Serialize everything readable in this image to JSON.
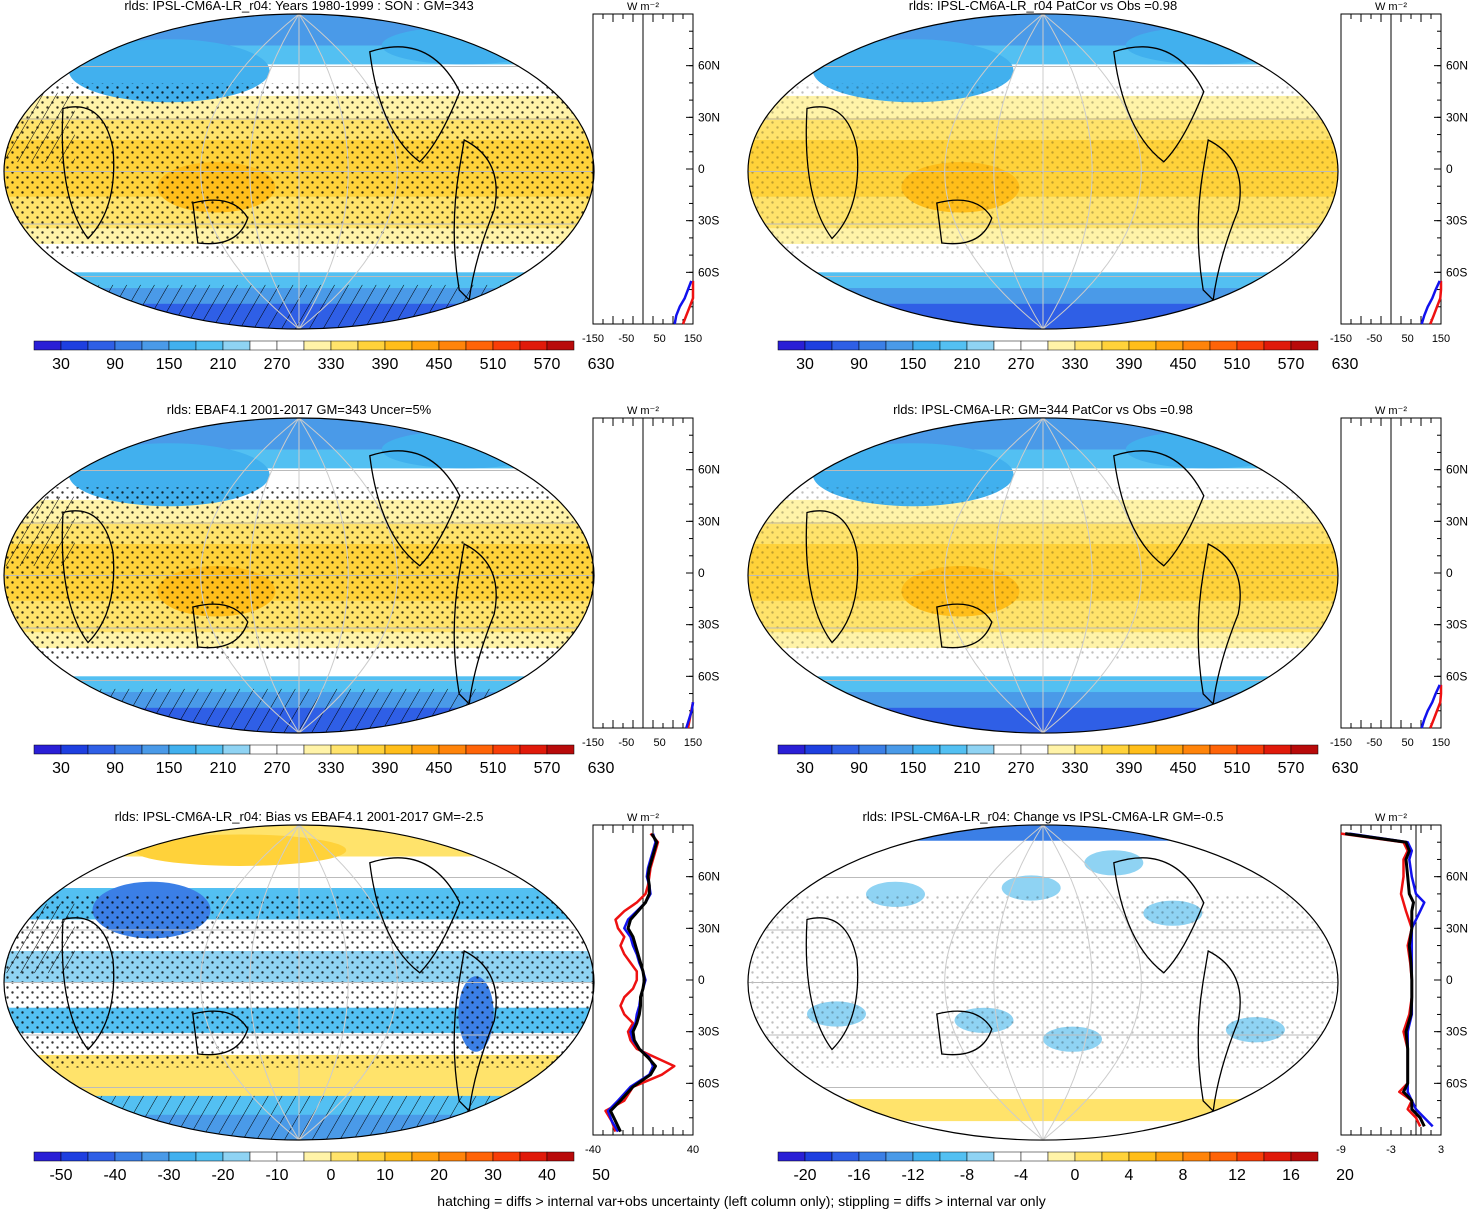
{
  "footer": "hatching = diffs > internal var+obs uncertainty (left column only); stippling = diffs > internal var only",
  "colors": {
    "sequential": [
      "#2a1fd6",
      "#1e3fe0",
      "#2f5fe6",
      "#3b7fe6",
      "#4a9ae8",
      "#41b0ee",
      "#53c0f2",
      "#8fd3f3",
      "#ffffff",
      "#ffffff",
      "#fff3a8",
      "#ffe36b",
      "#ffd23a",
      "#ffbe1a",
      "#ffa20e",
      "#ff840a",
      "#ff6408",
      "#f83e08",
      "#e01a0a",
      "#b80a0a"
    ],
    "diverging": [
      "#2a1fd6",
      "#1e3fe0",
      "#2f5fe6",
      "#3b7fe6",
      "#4a9ae8",
      "#41b0ee",
      "#53c0f2",
      "#8fd3f3",
      "#ffffff",
      "#ffffff",
      "#fff3a8",
      "#ffe36b",
      "#ffd23a",
      "#ffbe1a",
      "#ffa20e",
      "#ff840a",
      "#ff6408",
      "#f83e08",
      "#e01a0a",
      "#b80a0a"
    ],
    "line_red": "#ee1111",
    "line_blue": "#1111ee",
    "line_black": "#000000"
  },
  "chart_data": [
    {
      "type": "heatmap",
      "title": "rlds: IPSL-CM6A-LR_r04: Years 1980-1999 : SON : GM=343",
      "colorbar_labels": [
        "30",
        "90",
        "150",
        "210",
        "270",
        "330",
        "390",
        "450",
        "510",
        "570",
        "630"
      ],
      "profile": {
        "units_label": "W m⁻²",
        "xticks": [
          "-150",
          "-50",
          "50",
          "150"
        ],
        "xlim": [
          -150,
          150
        ],
        "lat_labels": [
          "60N",
          "30N",
          "0",
          "30S",
          "60S"
        ],
        "series": [
          {
            "name": "",
            "lat": [
              -90,
              -85,
              -80,
              -75,
              -70,
              -65
            ],
            "values": [
              120,
              130,
              140,
              150,
              150,
              150
            ]
          },
          {
            "name": "",
            "lat": [
              -90,
              -85,
              -80,
              -75,
              -70,
              -65
            ],
            "values": [
              95,
              100,
              110,
              125,
              135,
              145
            ]
          }
        ]
      }
    },
    {
      "type": "heatmap",
      "title": "rlds: IPSL-CM6A-LR_r04 PatCor vs Obs =0.98",
      "colorbar_labels": [
        "30",
        "90",
        "150",
        "210",
        "270",
        "330",
        "390",
        "450",
        "510",
        "570",
        "630"
      ],
      "profile": {
        "units_label": "W m⁻²",
        "xticks": [
          "-150",
          "-50",
          "50",
          "150"
        ],
        "xlim": [
          -150,
          150
        ],
        "lat_labels": [
          "60N",
          "30N",
          "0",
          "30S",
          "60S"
        ],
        "series": [
          {
            "name": "",
            "lat": [
              -90,
              -85,
              -80,
              -75,
              -70,
              -65
            ],
            "values": [
              118,
              128,
              138,
              148,
              150,
              150
            ]
          },
          {
            "name": "",
            "lat": [
              -90,
              -85,
              -80,
              -75,
              -70,
              -65
            ],
            "values": [
              92,
              100,
              110,
              124,
              134,
              146
            ]
          }
        ]
      }
    },
    {
      "type": "heatmap",
      "title": "rlds: EBAF4.1 2001-2017 GM=343 Uncer=5%",
      "colorbar_labels": [
        "30",
        "90",
        "150",
        "210",
        "270",
        "330",
        "390",
        "450",
        "510",
        "570",
        "630"
      ],
      "profile": {
        "units_label": "W m⁻²",
        "xticks": [
          "-150",
          "-50",
          "50",
          "150"
        ],
        "xlim": [
          -150,
          150
        ],
        "lat_labels": [
          "60N",
          "30N",
          "0",
          "30S",
          "60S"
        ],
        "series": [
          {
            "name": "",
            "lat": [
              -90,
              -85,
              -80,
              -75
            ],
            "values": [
              135,
              140,
              145,
              150
            ]
          },
          {
            "name": "",
            "lat": [
              -90,
              -85,
              -80,
              -75
            ],
            "values": [
              130,
              138,
              146,
              150
            ]
          }
        ]
      }
    },
    {
      "type": "heatmap",
      "title": "rlds: IPSL-CM6A-LR: GM=344 PatCor vs Obs =0.98",
      "colorbar_labels": [
        "30",
        "90",
        "150",
        "210",
        "270",
        "330",
        "390",
        "450",
        "510",
        "570",
        "630"
      ],
      "profile": {
        "units_label": "W m⁻²",
        "xticks": [
          "-150",
          "-50",
          "50",
          "150"
        ],
        "xlim": [
          -150,
          150
        ],
        "lat_labels": [
          "60N",
          "30N",
          "0",
          "30S",
          "60S"
        ],
        "series": [
          {
            "name": "",
            "lat": [
              -90,
              -85,
              -80,
              -75,
              -70,
              -65
            ],
            "values": [
              118,
              128,
              138,
              148,
              150,
              150
            ]
          },
          {
            "name": "",
            "lat": [
              -90,
              -85,
              -80,
              -75,
              -70,
              -65
            ],
            "values": [
              92,
              100,
              110,
              124,
              134,
              146
            ]
          }
        ]
      }
    },
    {
      "type": "heatmap",
      "title": "rlds: IPSL-CM6A-LR_r04: Bias vs EBAF4.1 2001-2017  GM=-2.5",
      "colorbar_labels": [
        "-50",
        "-40",
        "-30",
        "-20",
        "-10",
        "0",
        "10",
        "20",
        "30",
        "40",
        "50"
      ],
      "profile": {
        "units_label": "W m⁻²",
        "xticks": [
          "-40",
          "40"
        ],
        "xlim": [
          -40,
          40
        ],
        "lat_labels": [
          "60N",
          "30N",
          "0",
          "30S",
          "60S"
        ],
        "series": [
          {
            "name": "",
            "lat": [
              -88,
              -82,
              -76,
              -70,
              -62,
              -55,
              -50,
              -45,
              -40,
              -35,
              -30,
              -25,
              -20,
              -15,
              -10,
              -5,
              0,
              5,
              10,
              15,
              20,
              25,
              30,
              35,
              40,
              45,
              50,
              55,
              60,
              65,
              70,
              75,
              80,
              85
            ],
            "values": [
              -22,
              -25,
              -30,
              -15,
              -8,
              15,
              25,
              10,
              -5,
              -10,
              -12,
              -8,
              -15,
              -18,
              -15,
              -8,
              -5,
              -5,
              -10,
              -15,
              -18,
              -15,
              -20,
              -22,
              -15,
              -5,
              2,
              4,
              5,
              6,
              8,
              10,
              12,
              6
            ]
          },
          {
            "name": "",
            "lat": [
              -88,
              -82,
              -76,
              -70,
              -62,
              -55,
              -50,
              -45,
              -40,
              -35,
              -30,
              -25,
              -20,
              -15,
              -10,
              -5,
              0,
              5,
              10,
              15,
              20,
              25,
              30,
              35,
              40,
              45,
              50,
              55,
              60,
              65,
              70,
              75,
              80,
              85
            ],
            "values": [
              -20,
              -25,
              -28,
              -20,
              -10,
              5,
              8,
              5,
              -3,
              -8,
              -10,
              -6,
              -5,
              -3,
              -2,
              0,
              2,
              0,
              -3,
              -5,
              -8,
              -10,
              -15,
              -12,
              -5,
              2,
              6,
              5,
              3,
              4,
              6,
              8,
              10,
              8
            ]
          },
          {
            "name": "",
            "lat": [
              -88,
              -82,
              -76,
              -70,
              -62,
              -55,
              -50,
              -45,
              -40,
              -35,
              -30,
              -25,
              -20,
              -15,
              -10,
              -5,
              0,
              5,
              10,
              15,
              20,
              25,
              30,
              35,
              40,
              45,
              50,
              55,
              60,
              65,
              70,
              75,
              80,
              85
            ],
            "values": [
              -18,
              -22,
              -26,
              -18,
              -8,
              6,
              10,
              4,
              -3,
              -7,
              -8,
              -5,
              -3,
              -2,
              -2,
              0,
              1,
              0,
              -2,
              -4,
              -6,
              -8,
              -12,
              -10,
              -4,
              2,
              5,
              5,
              4,
              5,
              7,
              9,
              11,
              7
            ]
          }
        ]
      }
    },
    {
      "type": "heatmap",
      "title": "rlds: IPSL-CM6A-LR_r04: Change vs IPSL-CM6A-LR GM=-0.5",
      "colorbar_labels": [
        "-20",
        "-16",
        "-12",
        "-8",
        "-4",
        "0",
        "4",
        "8",
        "12",
        "16",
        "20"
      ],
      "profile": {
        "units_label": "W m⁻²",
        "xticks": [
          "-9",
          "-3",
          "3"
        ],
        "xlim": [
          -9,
          3
        ],
        "lat_labels": [
          "60N",
          "30N",
          "0",
          "30S",
          "60S"
        ],
        "series": [
          {
            "name": "",
            "lat": [
              -85,
              -80,
              -75,
              -70,
              -65,
              -60,
              -50,
              -40,
              -30,
              -20,
              -10,
              0,
              10,
              20,
              30,
              40,
              45,
              50,
              60,
              70,
              75,
              80,
              85
            ],
            "values": [
              0.5,
              0,
              -1,
              -0.5,
              -2,
              -1,
              -1,
              -1,
              -1.5,
              -0.8,
              -0.5,
              -0.5,
              -0.7,
              -1,
              -0.5,
              -1.2,
              -1.5,
              -1.8,
              -1.5,
              -1.5,
              -1,
              -1.5,
              -9
            ]
          },
          {
            "name": "",
            "lat": [
              -85,
              -80,
              -75,
              -70,
              -65,
              -60,
              -50,
              -40,
              -30,
              -20,
              -10,
              0,
              10,
              20,
              30,
              40,
              45,
              50,
              60,
              70,
              75,
              80,
              85
            ],
            "values": [
              2,
              1,
              0,
              -0.5,
              -1,
              -1,
              -1,
              -1,
              -1,
              -0.5,
              -0.5,
              -0.5,
              -0.5,
              -0.5,
              -0.5,
              0.5,
              1,
              0,
              -0.5,
              -0.8,
              -0.5,
              -1,
              -8
            ]
          },
          {
            "name": "",
            "lat": [
              -85,
              -80,
              -75,
              -70,
              -65,
              -60,
              -50,
              -40,
              -30,
              -20,
              -10,
              0,
              10,
              20,
              30,
              40,
              45,
              50,
              60,
              70,
              75,
              80,
              85
            ],
            "values": [
              1,
              0.5,
              -0.5,
              -0.5,
              -1.5,
              -1,
              -1,
              -1,
              -1.2,
              -0.6,
              -0.5,
              -0.5,
              -0.6,
              -0.8,
              -0.5,
              -0.5,
              -0.3,
              -0.8,
              -1,
              -1.2,
              -0.8,
              -1.2,
              -8.5
            ]
          }
        ]
      }
    }
  ]
}
